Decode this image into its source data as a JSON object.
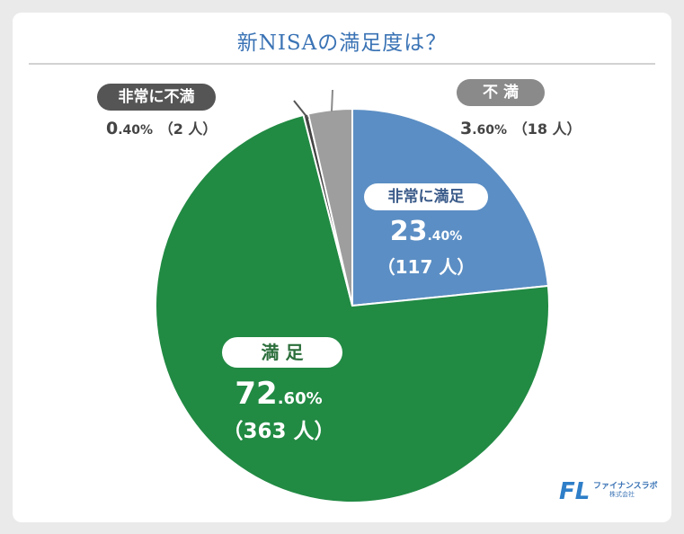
{
  "chart_data": {
    "type": "pie",
    "title": "新NISAの満足度は？",
    "slices": [
      {
        "label": "非常に満足",
        "percent": 23.4,
        "count": 117,
        "percent_int": "23",
        "percent_dec": ".40%",
        "count_text": "（117 人）",
        "color": "#5b8ec4"
      },
      {
        "label": "満 足",
        "percent": 72.6,
        "count": 363,
        "percent_int": "72",
        "percent_dec": ".60%",
        "count_text": "（363 人）",
        "color": "#218a43"
      },
      {
        "label": "非常に不満",
        "percent": 0.4,
        "count": 2,
        "percent_int": "0",
        "percent_dec": ".40%",
        "count_text": "（2 人）",
        "color": "#444444"
      },
      {
        "label": "不 満",
        "percent": 3.6,
        "count": 18,
        "percent_int": "3",
        "percent_dec": ".60%",
        "count_text": "（18 人）",
        "color": "#9e9e9e"
      }
    ]
  },
  "brand": {
    "name": "ファイナンスラボ",
    "sub": "株式会社",
    "logo_text": "FL"
  }
}
